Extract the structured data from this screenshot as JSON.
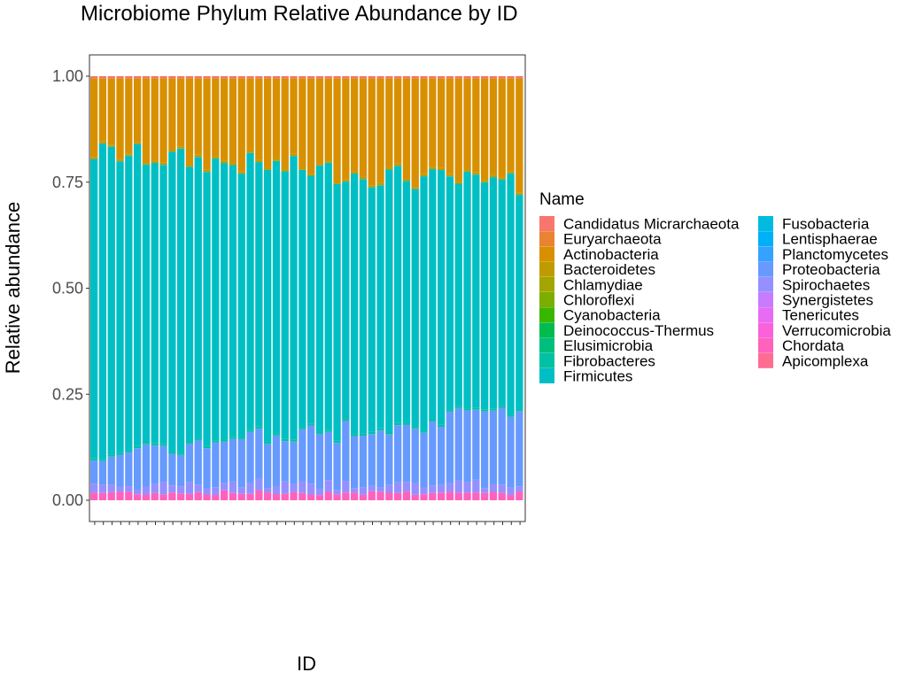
{
  "chart_data": {
    "type": "bar",
    "stacked": true,
    "title": "Microbiome Phylum Relative Abundance by ID",
    "xlabel": "ID",
    "ylabel": "Relative abundance",
    "ylim": [
      0,
      1.05
    ],
    "yticks": [
      0.0,
      0.25,
      0.5,
      0.75,
      1.0
    ],
    "ytick_labels": [
      "0.00",
      "0.25",
      "0.50",
      "0.75",
      "1.00"
    ],
    "x_tick_labels_rotated": true,
    "grid": false,
    "legend": {
      "title": "Name",
      "position": "right",
      "columns": 2,
      "entries": [
        {
          "name": "Candidatus Micrarchaeota",
          "color": "#F8766D"
        },
        {
          "name": "Euryarchaeota",
          "color": "#EA8331"
        },
        {
          "name": "Actinobacteria",
          "color": "#D89000"
        },
        {
          "name": "Bacteroidetes",
          "color": "#C09B00"
        },
        {
          "name": "Chlamydiae",
          "color": "#A3A500"
        },
        {
          "name": "Chloroflexi",
          "color": "#7CAE00"
        },
        {
          "name": "Cyanobacteria",
          "color": "#39B600"
        },
        {
          "name": "Deinococcus-Thermus",
          "color": "#00BB4E"
        },
        {
          "name": "Elusimicrobia",
          "color": "#00BF7D"
        },
        {
          "name": "Fibrobacteres",
          "color": "#00C1A3"
        },
        {
          "name": "Firmicutes",
          "color": "#00BFC4"
        },
        {
          "name": "Fusobacteria",
          "color": "#00BAE0"
        },
        {
          "name": "Lentisphaerae",
          "color": "#00B0F6"
        },
        {
          "name": "Planctomycetes",
          "color": "#35A2FF"
        },
        {
          "name": "Proteobacteria",
          "color": "#679AFF"
        },
        {
          "name": "Spirochaetes",
          "color": "#9590FF"
        },
        {
          "name": "Synergistetes",
          "color": "#C77CFF"
        },
        {
          "name": "Tenericutes",
          "color": "#E76BF3"
        },
        {
          "name": "Verrucomicrobia",
          "color": "#FA62DB"
        },
        {
          "name": "Chordata",
          "color": "#FF62BC"
        },
        {
          "name": "Apicomplexa",
          "color": "#FF6C91"
        }
      ]
    },
    "series_summary": {
      "n_ids": 50,
      "bottom_pink_band": 0.015,
      "proteobacteria_range": [
        0.07,
        0.2
      ],
      "firmicutes_top_range": [
        0.68,
        0.88
      ],
      "actinobacteria_top": 1.0
    }
  }
}
